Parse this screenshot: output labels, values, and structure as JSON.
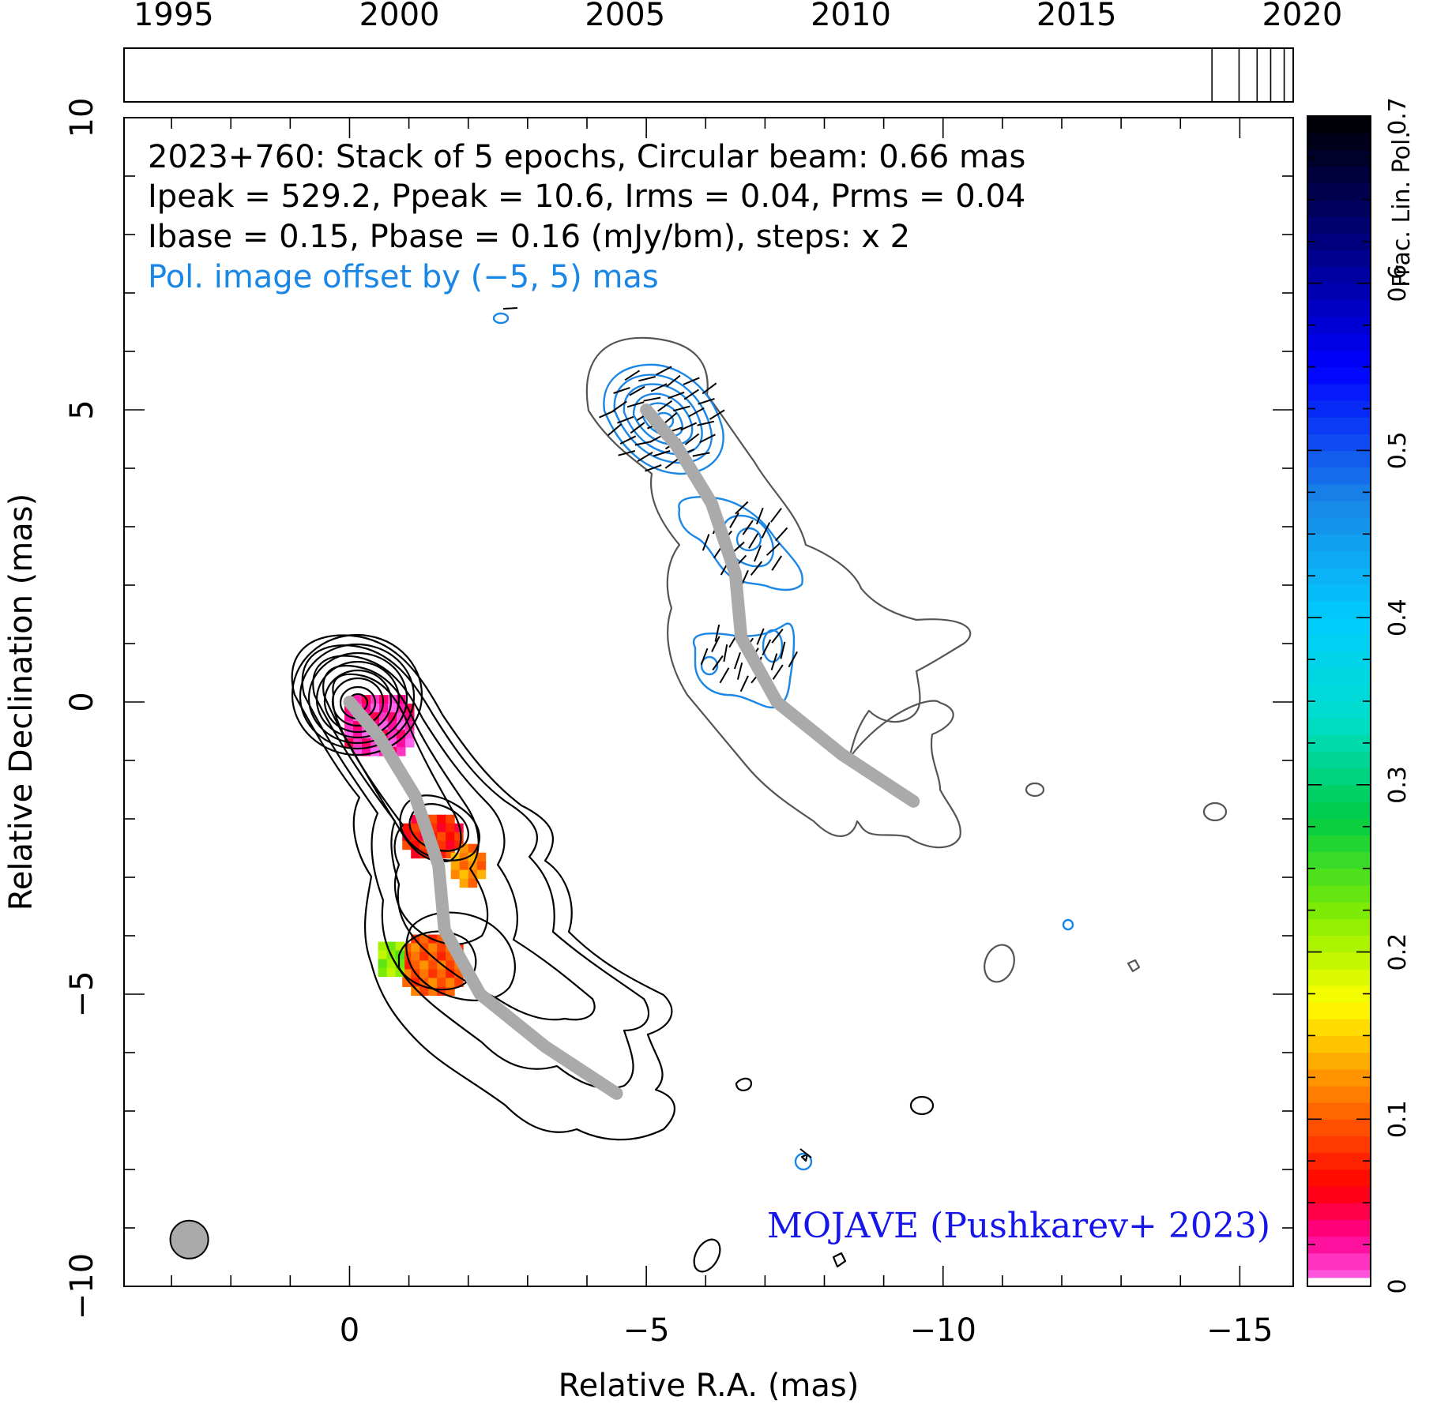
{
  "header": {
    "line1": "2023+760: Stack of 5 epochs, Circular beam: 0.66 mas",
    "line2": "Ipeak = 529.2, Ppeak = 10.6, Irms = 0.04, Prms = 0.04",
    "line3": "Ibase = 0.15, Pbase = 0.16 (mJy/bm), steps: x 2",
    "line4": "Pol. image offset by (−5, 5) mas"
  },
  "credit": "MOJAVE (Pushkarev+ 2023)",
  "colors": {
    "pol_offset_text": "#1a86e6",
    "pol_contours": "#1a86e6",
    "credit": "#1616e8",
    "ridge_line": "#aaaaaa",
    "beam": "#aaaaaa"
  },
  "chart_data": [
    {
      "type": "heatmap",
      "title": "",
      "xlabel": "Relative R.A. (mas)",
      "ylabel": "Relative Declination (mas)",
      "xlim": [
        3.8,
        -15.9
      ],
      "ylim": [
        -10,
        10
      ],
      "x_axis_reversed": true,
      "x_ticks": [
        0,
        -5,
        -10,
        -15
      ],
      "x_tick_labels": [
        "0",
        "−5",
        "−10",
        "−15"
      ],
      "y_ticks": [
        -10,
        -5,
        0,
        5,
        10
      ],
      "y_tick_labels": [
        "−10",
        "−5",
        "0",
        "5",
        "10"
      ],
      "grid": false,
      "pol_offset_mas": [
        -5,
        5
      ],
      "beam_mas": 0.66,
      "beam_position_mas": [
        2.7,
        -9.2
      ],
      "ridge_line_mas": [
        [
          0,
          0
        ],
        [
          -0.5,
          -0.6
        ],
        [
          -1.1,
          -1.6
        ],
        [
          -1.5,
          -2.8
        ],
        [
          -1.6,
          -3.9
        ],
        [
          -2.2,
          -5.0
        ],
        [
          -3.3,
          -5.9
        ],
        [
          -4.5,
          -6.7
        ]
      ],
      "fractional_polarization_patches": [
        {
          "center_mas": [
            -0.5,
            -0.4
          ],
          "frac_pol": 0.02
        },
        {
          "center_mas": [
            -1.4,
            -2.3
          ],
          "frac_pol": 0.07
        },
        {
          "center_mas": [
            -2.0,
            -2.8
          ],
          "frac_pol": 0.12
        },
        {
          "center_mas": [
            -1.4,
            -4.5
          ],
          "frac_pol": 0.1
        },
        {
          "center_mas": [
            -0.7,
            -4.4
          ],
          "frac_pol": 0.22
        }
      ]
    },
    {
      "type": "heatmap",
      "title": "",
      "ylabel": "Frac. Lin. Pol.",
      "ylim": [
        0,
        0.7
      ],
      "y_ticks": [
        0,
        0.1,
        0.2,
        0.3,
        0.4,
        0.5,
        0.6,
        0.7
      ],
      "y_tick_labels": [
        "0",
        "0.1",
        "0.2",
        "0.3",
        "0.4",
        "0.5",
        "0.6",
        "0.7"
      ],
      "colormap_stops": [
        {
          "value": 0.0,
          "color": "#ff66ee"
        },
        {
          "value": 0.03,
          "color": "#ff0090"
        },
        {
          "value": 0.06,
          "color": "#ff0000"
        },
        {
          "value": 0.12,
          "color": "#ff8800"
        },
        {
          "value": 0.17,
          "color": "#ffff00"
        },
        {
          "value": 0.22,
          "color": "#88ee00"
        },
        {
          "value": 0.28,
          "color": "#00cc44"
        },
        {
          "value": 0.34,
          "color": "#00ddcc"
        },
        {
          "value": 0.4,
          "color": "#00ccff"
        },
        {
          "value": 0.47,
          "color": "#1a86e6"
        },
        {
          "value": 0.55,
          "color": "#0000ff"
        },
        {
          "value": 0.62,
          "color": "#000088"
        },
        {
          "value": 0.7,
          "color": "#000000"
        }
      ]
    },
    {
      "type": "scatter",
      "title": "",
      "xlim": [
        1993.9,
        2019.8
      ],
      "x_ticks": [
        1995,
        2000,
        2005,
        2010,
        2015,
        2020
      ],
      "x_tick_labels": [
        "1995",
        "2000",
        "2005",
        "2010",
        "2015",
        "2020"
      ],
      "epochs": [
        2018.0,
        2018.6,
        2019.0,
        2019.3,
        2019.6
      ]
    }
  ]
}
